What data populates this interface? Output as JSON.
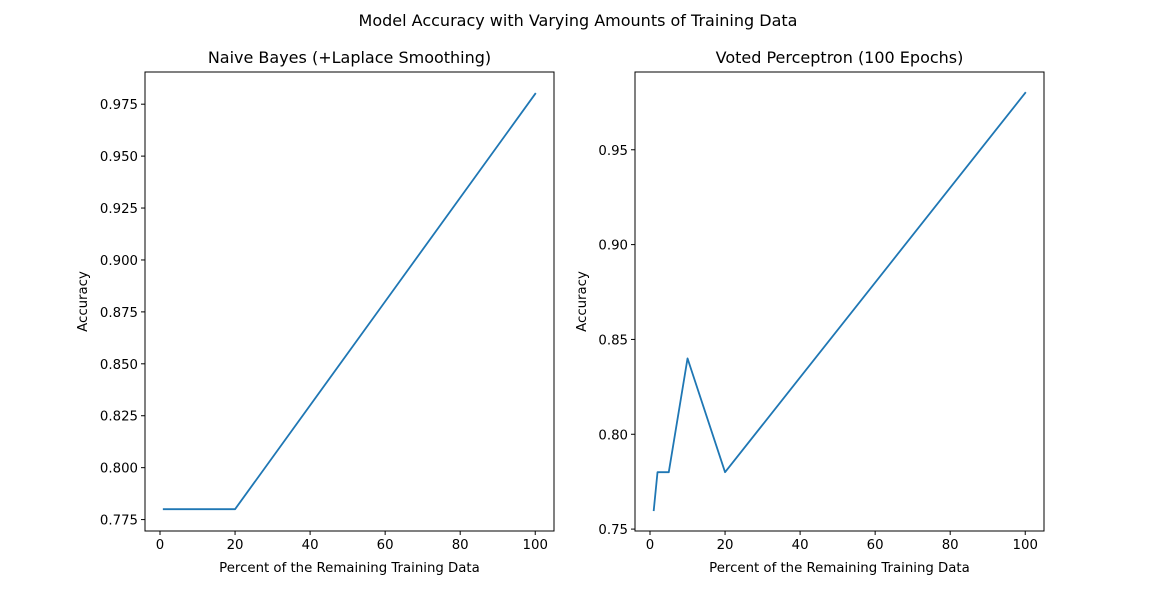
{
  "chart_data": {
    "suptitle": "Model Accuracy with Varying Amounts of Training Data",
    "panels": [
      {
        "type": "line",
        "title": "Naive Bayes (+Laplace Smoothing)",
        "xlabel": "Percent of the Remaining Training Data",
        "ylabel": "Accuracy",
        "xlim": [
          -4,
          105
        ],
        "ylim": [
          0.7695,
          0.9905
        ],
        "xticks": [
          0,
          20,
          40,
          60,
          80,
          100
        ],
        "xtick_labels": [
          "0",
          "20",
          "40",
          "60",
          "80",
          "100"
        ],
        "yticks": [
          0.775,
          0.8,
          0.825,
          0.85,
          0.875,
          0.9,
          0.925,
          0.95,
          0.975
        ],
        "ytick_labels": [
          "0.775",
          "0.800",
          "0.825",
          "0.850",
          "0.875",
          "0.900",
          "0.925",
          "0.950",
          "0.975"
        ],
        "color": "#1f77b4",
        "grid": false,
        "x": [
          1,
          2,
          5,
          10,
          20,
          100
        ],
        "y": [
          0.78,
          0.78,
          0.78,
          0.78,
          0.78,
          0.98
        ]
      },
      {
        "type": "line",
        "title": "Voted Perceptron (100 Epochs)",
        "xlabel": "Percent of the Remaining Training Data",
        "ylabel": "Accuracy",
        "xlim": [
          -4,
          105
        ],
        "ylim": [
          0.749,
          0.991
        ],
        "xticks": [
          0,
          20,
          40,
          60,
          80,
          100
        ],
        "xtick_labels": [
          "0",
          "20",
          "40",
          "60",
          "80",
          "100"
        ],
        "yticks": [
          0.75,
          0.8,
          0.85,
          0.9,
          0.95
        ],
        "ytick_labels": [
          "0.75",
          "0.80",
          "0.85",
          "0.90",
          "0.95"
        ],
        "color": "#1f77b4",
        "grid": false,
        "x": [
          1,
          2,
          5,
          10,
          20,
          100
        ],
        "y": [
          0.76,
          0.78,
          0.78,
          0.84,
          0.78,
          0.98
        ]
      }
    ]
  }
}
